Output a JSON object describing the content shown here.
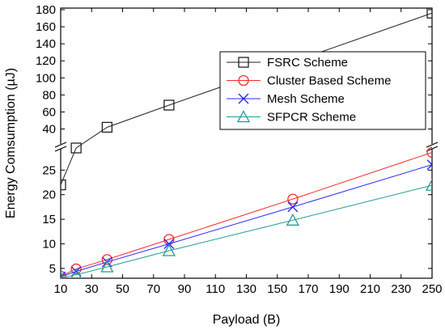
{
  "chart_data": {
    "type": "line",
    "xlabel": "Payload (B)",
    "ylabel": "Energy Comsumption (µJ)",
    "xlim": [
      10,
      250
    ],
    "x_ticks": [
      10,
      30,
      50,
      70,
      90,
      110,
      130,
      150,
      170,
      190,
      210,
      230,
      250
    ],
    "y_axis_break": true,
    "upper_ylim": [
      30,
      180
    ],
    "upper_y_ticks": [
      40,
      60,
      80,
      100,
      120,
      140,
      160,
      180
    ],
    "lower_ylim": [
      3,
      29
    ],
    "lower_y_ticks": [
      5,
      10,
      15,
      20,
      25
    ],
    "legend_position": "top-right",
    "grid": false,
    "series": [
      {
        "name": "FSRC Scheme",
        "color": "#222222",
        "marker": "square",
        "x": [
          10,
          20,
          40,
          80,
          250
        ],
        "y": [
          22,
          29.5,
          42,
          68,
          176
        ]
      },
      {
        "name": "Cluster Based Scheme",
        "color": "#ff2a2a",
        "marker": "circle",
        "x": [
          10,
          20,
          40,
          80,
          160,
          250
        ],
        "y": [
          3.4,
          4.9,
          6.8,
          10.9,
          19.1,
          28.6
        ]
      },
      {
        "name": "Mesh Scheme",
        "color": "#2a2aff",
        "marker": "cross",
        "x": [
          10,
          20,
          40,
          80,
          160,
          250
        ],
        "y": [
          3.3,
          4.4,
          6.3,
          10.0,
          17.5,
          26.1
        ]
      },
      {
        "name": "SFPCR Scheme",
        "color": "#1f9e96",
        "marker": "triangle",
        "x": [
          10,
          20,
          40,
          80,
          160,
          250
        ],
        "y": [
          3.1,
          3.7,
          5.3,
          8.6,
          14.8,
          21.9
        ]
      }
    ]
  }
}
